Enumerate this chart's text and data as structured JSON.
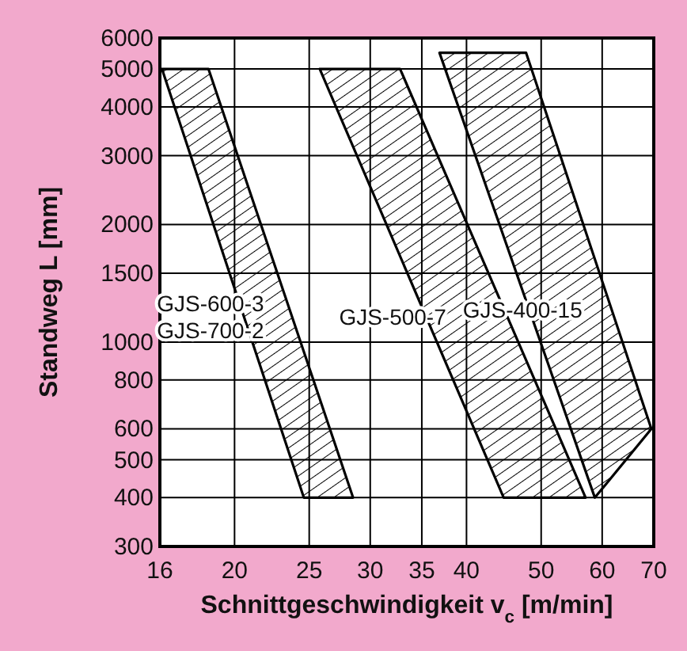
{
  "chart_data": {
    "type": "area",
    "xlabel": "Schnittgeschwindigkeit v$_{c}$ [m/min]",
    "ylabel": "Standweg L [mm]",
    "log": "xy",
    "xlim": [
      16,
      70
    ],
    "xticks": [
      16,
      20,
      25,
      30,
      35,
      40,
      50,
      60,
      70
    ],
    "ylim": [
      300,
      6000
    ],
    "yticks": [
      300,
      400,
      500,
      600,
      800,
      1000,
      1500,
      2000,
      3000,
      4000,
      5000,
      6000
    ],
    "grid": true,
    "series": [
      {
        "name": "GJS-600-3\nGJS-700-2",
        "x": [
          16.1,
          18.5,
          28.5,
          24.6,
          16.1
        ],
        "values": [
          5000,
          5000,
          400,
          400,
          5000
        ],
        "color": "#000000"
      },
      {
        "name": "GJS-500-7",
        "x": [
          25.8,
          32.8,
          57.1,
          44.7,
          25.8
        ],
        "values": [
          5000,
          5000,
          400,
          400,
          5000
        ],
        "color": "#000000"
      },
      {
        "name": "GJS-400-15",
        "x": [
          36.9,
          47.8,
          69.5,
          58.7,
          36.9
        ],
        "values": [
          5500,
          5500,
          600,
          400,
          5500
        ],
        "color": "#000000"
      }
    ]
  }
}
